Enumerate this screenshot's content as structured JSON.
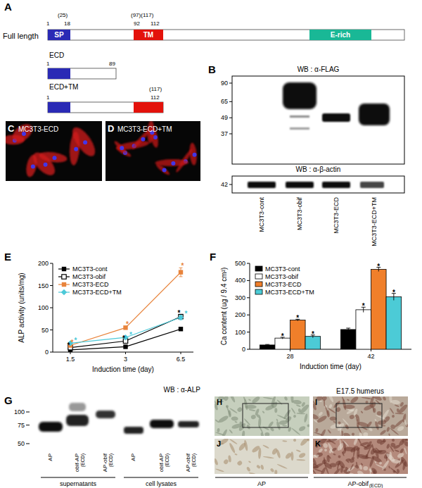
{
  "panels": [
    "A",
    "B",
    "C",
    "D",
    "E",
    "F",
    "G",
    "H",
    "I",
    "J",
    "K"
  ],
  "constructs": [
    {
      "name": "Full length",
      "numbers": [
        "1",
        "(25)",
        "18",
        "(97)(117)",
        "92",
        "112"
      ],
      "domains": [
        "SP",
        "TM",
        "E-rich"
      ]
    },
    {
      "name": "ECD",
      "numbers": [
        "1",
        "89"
      ]
    },
    {
      "name": "ECD+TM",
      "numbers": [
        "1",
        "(117)",
        "112"
      ]
    }
  ],
  "blot_b": {
    "title": "WB : α-FLAG",
    "markers": [
      90,
      65,
      49,
      37
    ],
    "loading_title": "WB : α-β-actin",
    "loading_markers": [
      42
    ],
    "lanes": [
      "MC3T3-cont",
      "MC3T3-obif",
      "MC3T3-ECD",
      "MC3T3-ECD+TM"
    ]
  },
  "images_cd": [
    "MC3T3-ECD",
    "MC3T3-ECD+TM"
  ],
  "chart_data": [
    {
      "type": "line",
      "y_label": "ALP activity (units/mg)",
      "x_label": "Induction time (day)",
      "categories": [
        "1.5",
        "3",
        "6.5"
      ],
      "series": [
        {
          "name": "MC3T3-cont",
          "color": "#000000",
          "marker": "square",
          "values": [
            5,
            12,
            52
          ],
          "errors": [
            1,
            1,
            3
          ]
        },
        {
          "name": "MC3T3-obif",
          "color": "#000000",
          "marker": "square-open",
          "values": [
            10,
            25,
            80
          ],
          "errors": [
            1,
            2,
            4
          ],
          "annotations": [
            "*",
            "*",
            "*"
          ]
        },
        {
          "name": "MC3T3-ECD",
          "color": "#e8843c",
          "marker": "square",
          "values": [
            15,
            55,
            180
          ],
          "errors": [
            2,
            3,
            10
          ],
          "annotations": [
            "*",
            "*",
            "*"
          ]
        },
        {
          "name": "MC3T3-ECD+TM",
          "color": "#4cc9d8",
          "marker": "diamond",
          "values": [
            20,
            33,
            78
          ],
          "errors": [
            2,
            2,
            5
          ],
          "annotations": [
            "*",
            "*",
            "*"
          ]
        }
      ],
      "ylim": [
        0,
        200
      ],
      "yticks": [
        0,
        50,
        100,
        150,
        200
      ],
      "legend": "upper-left"
    },
    {
      "type": "bar",
      "y_label": "Ca content (ug / 9.4 cm²)",
      "x_label": "Induction time (day)",
      "categories": [
        "28",
        "42"
      ],
      "series": [
        {
          "name": "MC3T3-cont",
          "color": "#000000",
          "values": [
            25,
            115
          ],
          "errors": [
            3,
            8
          ]
        },
        {
          "name": "MC3T3-obif",
          "color": "#ffffff",
          "values": [
            65,
            230
          ],
          "errors": [
            5,
            15
          ],
          "annotations": [
            "*",
            "*"
          ]
        },
        {
          "name": "MC3T3-ECD",
          "color": "#f07f2a",
          "values": [
            170,
            465
          ],
          "errors": [
            5,
            12
          ],
          "annotations": [
            "*",
            "*"
          ]
        },
        {
          "name": "MC3T3-ECD+TM",
          "color": "#4ccbd6",
          "values": [
            75,
            305
          ],
          "errors": [
            8,
            20
          ],
          "annotations": [
            "*",
            "*"
          ]
        }
      ],
      "ylim": [
        0,
        500
      ],
      "yticks": [
        0,
        100,
        200,
        300,
        400,
        500
      ],
      "legend": "upper-left"
    }
  ],
  "blot_g": {
    "title": "WB : α-ALP",
    "markers": [
      100,
      75,
      50
    ],
    "lanes": [
      {
        "name": "AP"
      },
      {
        "name": "obif-AP",
        "sub": "(ECD)"
      },
      {
        "name": "AP-obif",
        "sub": "(ECD)"
      },
      {
        "name": "AP"
      },
      {
        "name": "obif-AP",
        "sub": "(ECD)"
      },
      {
        "name": "AP-obif",
        "sub": "(ECD)"
      }
    ],
    "groups": [
      "supernatants",
      "cell lysates"
    ]
  },
  "sections": {
    "title": "E17.5 humerus",
    "captions": [
      {
        "name": "AP"
      },
      {
        "name": "AP-obif",
        "sub": "(ECD)"
      }
    ]
  }
}
